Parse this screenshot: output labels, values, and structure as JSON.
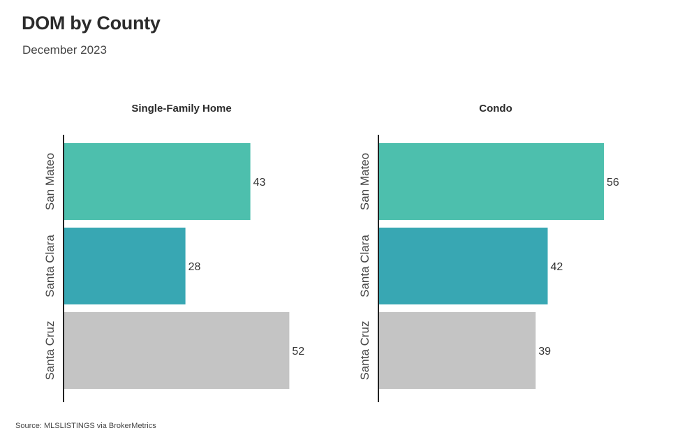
{
  "title": "DOM by County",
  "subtitle": "December 2023",
  "source": "Source:  MLSLISTINGS via BrokerMetrics",
  "chart_data": [
    {
      "type": "bar",
      "orientation": "horizontal",
      "title": "Single-Family Home",
      "categories": [
        "San Mateo",
        "Santa Clara",
        "Santa Cruz"
      ],
      "values": [
        43,
        28,
        52
      ],
      "colors": [
        "#4dbfad",
        "#38a7b3",
        "#c4c4c4"
      ],
      "xlim": [
        0,
        55
      ]
    },
    {
      "type": "bar",
      "orientation": "horizontal",
      "title": "Condo",
      "categories": [
        "San Mateo",
        "Santa Clara",
        "Santa Cruz"
      ],
      "values": [
        56,
        42,
        39
      ],
      "colors": [
        "#4dbfad",
        "#38a7b3",
        "#c4c4c4"
      ],
      "xlim": [
        0,
        60
      ]
    }
  ]
}
